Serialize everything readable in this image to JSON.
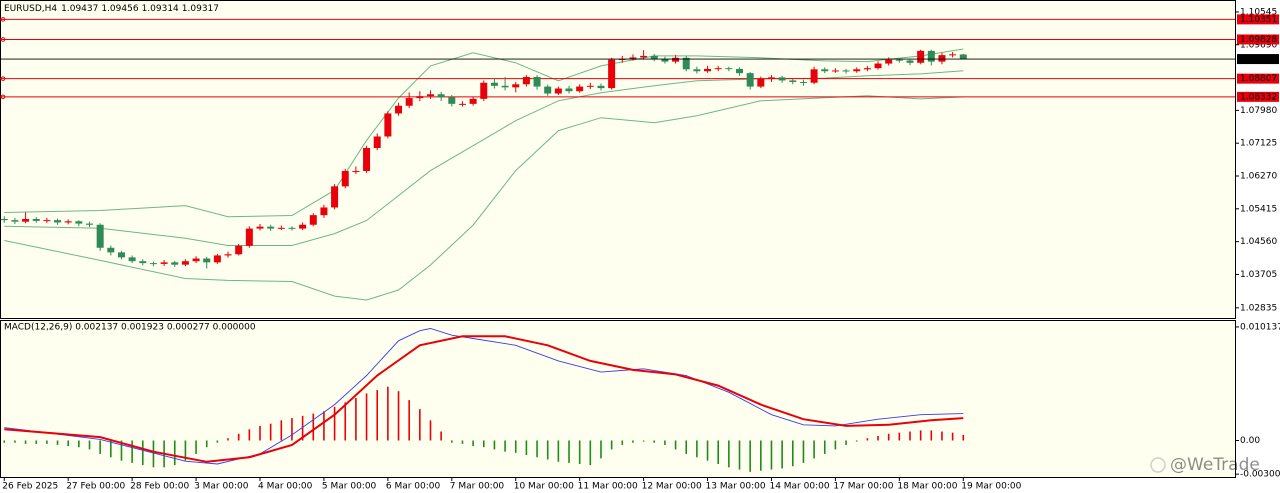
{
  "chart_data": [
    {
      "type": "candlestick",
      "title": "EURUSD,H4",
      "header_values": [
        1.09437,
        1.09456,
        1.09314,
        1.09317
      ],
      "open": [
        1.0515,
        1.0512,
        1.0508,
        1.0515,
        1.051,
        1.0512,
        1.0506,
        1.0509,
        1.0503,
        1.05,
        1.044,
        1.0428,
        1.0415,
        1.0405,
        1.04,
        1.0398,
        1.0402,
        1.0396,
        1.0405,
        1.0412,
        1.0402,
        1.042,
        1.0423,
        1.0445,
        1.049,
        1.0495,
        1.049,
        1.0492,
        1.049,
        1.05,
        1.0525,
        1.0545,
        1.06,
        1.064,
        1.064,
        1.07,
        1.073,
        1.079,
        1.081,
        1.083,
        1.0835,
        1.084,
        1.0832,
        1.0815,
        1.0815,
        1.0828,
        1.087,
        1.0862,
        1.0858,
        1.0866,
        1.0885,
        1.086,
        1.0842,
        1.0855,
        1.0848,
        1.086,
        1.0862,
        1.0856,
        1.093,
        1.0932,
        1.0936,
        1.094,
        1.0932,
        1.0925,
        1.0935,
        1.0905,
        1.09,
        1.0906,
        1.0908,
        1.0906,
        1.0895,
        1.086,
        1.088,
        1.0884,
        1.0876,
        1.0872,
        1.087,
        1.0905,
        1.09,
        1.0902,
        1.09,
        1.0905,
        1.0908,
        1.092,
        1.093,
        1.0928,
        1.0922,
        1.0953,
        1.0925,
        1.0942,
        1.09437
      ],
      "high": [
        1.0522,
        1.0518,
        1.0532,
        1.052,
        1.0518,
        1.0516,
        1.0514,
        1.0512,
        1.0508,
        1.0504,
        1.0446,
        1.0432,
        1.042,
        1.041,
        1.0404,
        1.0408,
        1.0406,
        1.041,
        1.0418,
        1.0416,
        1.0424,
        1.043,
        1.045,
        1.0496,
        1.0502,
        1.05,
        1.0498,
        1.0496,
        1.0506,
        1.053,
        1.0552,
        1.0606,
        1.0646,
        1.0652,
        1.0706,
        1.0738,
        1.0796,
        1.0818,
        1.0845,
        1.0848,
        1.085,
        1.0846,
        1.0838,
        1.0822,
        1.0834,
        1.0876,
        1.0882,
        1.0885,
        1.0872,
        1.089,
        1.089,
        1.0865,
        1.086,
        1.0862,
        1.0866,
        1.087,
        1.0868,
        1.0935,
        1.094,
        1.0944,
        1.0955,
        1.0945,
        1.0938,
        1.0942,
        1.094,
        1.0912,
        1.0914,
        1.0914,
        1.0912,
        1.091,
        1.0898,
        1.0886,
        1.089,
        1.0888,
        1.088,
        1.0878,
        1.0912,
        1.091,
        1.0908,
        1.0906,
        1.091,
        1.0914,
        1.0926,
        1.0936,
        1.0934,
        1.0932,
        1.0956,
        1.0956,
        1.0948,
        1.095,
        1.09456
      ],
      "low": [
        1.0505,
        1.0502,
        1.0504,
        1.0505,
        1.0505,
        1.05,
        1.0501,
        1.0496,
        1.0494,
        1.0432,
        1.042,
        1.041,
        1.04,
        1.0394,
        1.0392,
        1.0393,
        1.039,
        1.0392,
        1.04,
        1.0386,
        1.0398,
        1.0414,
        1.042,
        1.044,
        1.0485,
        1.0484,
        1.0486,
        1.0485,
        1.0486,
        1.0496,
        1.0518,
        1.054,
        1.0595,
        1.0632,
        1.0635,
        1.0694,
        1.0725,
        1.0784,
        1.0804,
        1.0822,
        1.0828,
        1.0822,
        1.0808,
        1.0808,
        1.081,
        1.0822,
        1.0855,
        1.085,
        1.0845,
        1.086,
        1.0852,
        1.0836,
        1.0838,
        1.0842,
        1.0844,
        1.0854,
        1.085,
        1.0852,
        1.0922,
        1.0928,
        1.093,
        1.0926,
        1.092,
        1.092,
        1.09,
        1.0894,
        1.0896,
        1.09,
        1.09,
        1.0888,
        1.0852,
        1.0856,
        1.0872,
        1.087,
        1.0866,
        1.0862,
        1.0866,
        1.0895,
        1.0896,
        1.0894,
        1.0896,
        1.09,
        1.0904,
        1.0915,
        1.0922,
        1.0916,
        1.0918,
        1.0915,
        1.0918,
        1.0936,
        1.09314
      ],
      "close": [
        1.0512,
        1.0508,
        1.0515,
        1.051,
        1.0512,
        1.0506,
        1.0509,
        1.0503,
        1.05,
        1.044,
        1.0428,
        1.0415,
        1.0405,
        1.04,
        1.0398,
        1.0402,
        1.0396,
        1.0405,
        1.0412,
        1.0402,
        1.042,
        1.0423,
        1.0445,
        1.049,
        1.0495,
        1.049,
        1.0492,
        1.049,
        1.05,
        1.0525,
        1.0545,
        1.06,
        1.064,
        1.064,
        1.07,
        1.073,
        1.079,
        1.081,
        1.083,
        1.0835,
        1.084,
        1.0832,
        1.0815,
        1.0815,
        1.0828,
        1.087,
        1.0862,
        1.0858,
        1.0866,
        1.0885,
        1.086,
        1.0842,
        1.0855,
        1.0848,
        1.086,
        1.0862,
        1.0856,
        1.093,
        1.0932,
        1.0936,
        1.094,
        1.0932,
        1.0925,
        1.0935,
        1.0905,
        1.09,
        1.0906,
        1.0908,
        1.0906,
        1.0895,
        1.086,
        1.088,
        1.0884,
        1.0876,
        1.0872,
        1.087,
        1.0905,
        1.09,
        1.0902,
        1.09,
        1.0905,
        1.0908,
        1.092,
        1.093,
        1.0928,
        1.0922,
        1.0953,
        1.0925,
        1.0942,
        1.0944,
        1.09317
      ],
      "up_color": "#e8000b",
      "down_color": "#2e8b57",
      "band_x": [
        0,
        9,
        17,
        21,
        27,
        31,
        34,
        37,
        40,
        44,
        48,
        52,
        56,
        61,
        65,
        71,
        77,
        81,
        86,
        90
      ],
      "band_upper": [
        1.0532,
        1.0537,
        1.055,
        1.0521,
        1.0524,
        1.059,
        1.072,
        1.083,
        1.0914,
        1.0948,
        1.0922,
        1.0875,
        1.0914,
        1.094,
        1.094,
        1.0935,
        1.0927,
        1.0925,
        1.094,
        1.0958
      ],
      "band_middle": [
        1.0496,
        1.0491,
        1.0465,
        1.0446,
        1.0446,
        1.0477,
        1.0511,
        1.0576,
        1.0641,
        1.0706,
        1.0771,
        1.0823,
        1.0844,
        1.0862,
        1.0875,
        1.088,
        1.0882,
        1.0888,
        1.0893,
        1.0901
      ],
      "band_lower": [
        1.0459,
        1.0407,
        1.036,
        1.0355,
        1.0352,
        1.0314,
        1.0304,
        1.033,
        1.0395,
        1.0499,
        1.0641,
        1.0745,
        1.0779,
        1.0766,
        1.0784,
        1.0823,
        1.0831,
        1.0836,
        1.0828,
        1.0833
      ],
      "band_color": "#6cb784",
      "levels": [
        1.10351,
        1.09828,
        1.08807,
        1.08332
      ],
      "level_color": "#e8000b",
      "current_price": 1.09317,
      "xlim": [
        -0.4,
        115.5
      ],
      "ylim": [
        1.0257,
        1.1083
      ],
      "yticks": [
        1.10545,
        {
          "value": 1.0969,
          "label": "1.09690"
        },
        {
          "value": 1.0798,
          "label": "1.07980"
        },
        1.07125,
        {
          "value": 1.0627,
          "label": "1.06270"
        },
        1.05415,
        {
          "value": 1.0456,
          "label": "1.04560"
        },
        1.03705,
        1.02835
      ]
    },
    {
      "type": "macd",
      "title": "MACD(12,26,9) 0.002137 0.001923 0.000277 0.000000",
      "histogram": [
        -0.0002,
        -0.0002,
        -0.0003,
        -0.0003,
        -0.0003,
        -0.0004,
        -0.0005,
        -0.0006,
        -0.0008,
        -0.0012,
        -0.0015,
        -0.0018,
        -0.002,
        -0.0022,
        -0.0024,
        -0.0024,
        -0.0022,
        -0.0018,
        -0.0012,
        -0.0006,
        -0.0002,
        0.0002,
        0.0006,
        0.001,
        0.0013,
        0.0015,
        0.0018,
        0.002,
        0.0022,
        0.0024,
        0.0026,
        0.003,
        0.0034,
        0.0038,
        0.0042,
        0.0045,
        0.0048,
        0.0044,
        0.0036,
        0.0028,
        0.0018,
        0.0008,
        -0.0002,
        -0.0003,
        -0.0005,
        -0.0006,
        -0.0008,
        -0.001,
        -0.0011,
        -0.0013,
        -0.0015,
        -0.0017,
        -0.0019,
        -0.002,
        -0.0021,
        -0.0022,
        -0.0016,
        -0.0008,
        -0.0004,
        -0.0002,
        -0.0001,
        -0.0002,
        -0.0004,
        -0.0008,
        -0.0012,
        -0.0015,
        -0.0018,
        -0.0021,
        -0.0024,
        -0.0026,
        -0.0028,
        -0.0027,
        -0.0026,
        -0.0025,
        -0.0023,
        -0.002,
        -0.0016,
        -0.0012,
        -0.0008,
        -0.0004,
        -0.0001,
        0.0002,
        0.0004,
        0.0006,
        0.0007,
        0.0008,
        0.0009,
        0.0009,
        0.0008,
        0.0007,
        0.0005
      ],
      "hist_up_color": "#e8000b",
      "hist_down_color": "#1f8a1f",
      "macd_x": [
        0,
        9,
        17,
        20,
        24,
        27,
        31,
        34,
        37,
        39,
        40,
        42,
        44,
        48,
        52,
        56,
        60,
        64,
        68,
        72,
        75,
        78,
        82,
        86,
        90
      ],
      "macd_values": [
        0.00115,
        0.0001,
        -0.00185,
        -0.0021,
        -0.0012,
        0.0005,
        0.0032,
        0.0058,
        0.0089,
        0.0098,
        0.01,
        0.0094,
        0.0091,
        0.0085,
        0.0071,
        0.0061,
        0.0064,
        0.0058,
        0.0043,
        0.0023,
        0.0014,
        0.0013,
        0.0019,
        0.0023,
        0.0024
      ],
      "macd_color": "#3a3af0",
      "signal_x": [
        0,
        9,
        14,
        19,
        23,
        27,
        31,
        35,
        39,
        43,
        47,
        51,
        55,
        59,
        63,
        67,
        71,
        75,
        79,
        83,
        87,
        90
      ],
      "signal_values": [
        0.001,
        0.0003,
        -0.001,
        -0.0019,
        -0.0015,
        -0.0004,
        0.0023,
        0.0058,
        0.0085,
        0.0093,
        0.0093,
        0.0085,
        0.0071,
        0.0063,
        0.0059,
        0.0049,
        0.0032,
        0.0019,
        0.0013,
        0.0014,
        0.0018,
        0.002
      ],
      "signal_color": "#e8000b",
      "xlim": [
        -0.4,
        115.5
      ],
      "ylim": [
        -0.00326,
        0.010666
      ],
      "yticks": [
        0.010137,
        {
          "value": 0,
          "label": "0.00"
        },
        -0.003004
      ],
      "xticks": [
        {
          "value": 0,
          "label": "26 Feb 2025"
        },
        {
          "value": 6,
          "label": "27 Feb 00:00"
        },
        {
          "value": 12,
          "label": "28 Feb 00:00"
        },
        {
          "value": 18,
          "label": "3 Mar 00:00"
        },
        {
          "value": 24,
          "label": "4 Mar 00:00"
        },
        {
          "value": 30,
          "label": "5 Mar 00:00"
        },
        {
          "value": 36,
          "label": "6 Mar 00:00"
        },
        {
          "value": 42,
          "label": "7 Mar 00:00"
        },
        {
          "value": 48,
          "label": "10 Mar 00:00"
        },
        {
          "value": 54,
          "label": "11 Mar 00:00"
        },
        {
          "value": 60,
          "label": "12 Mar 00:00"
        },
        {
          "value": 66,
          "label": "13 Mar 00:00"
        },
        {
          "value": 72,
          "label": "14 Mar 00:00"
        },
        {
          "value": 78,
          "label": "17 Mar 00:00"
        },
        {
          "value": 84,
          "label": "18 Mar 00:00"
        },
        {
          "value": 90,
          "label": "19 Mar 00:00"
        }
      ]
    }
  ],
  "watermark": "@WeTrade"
}
